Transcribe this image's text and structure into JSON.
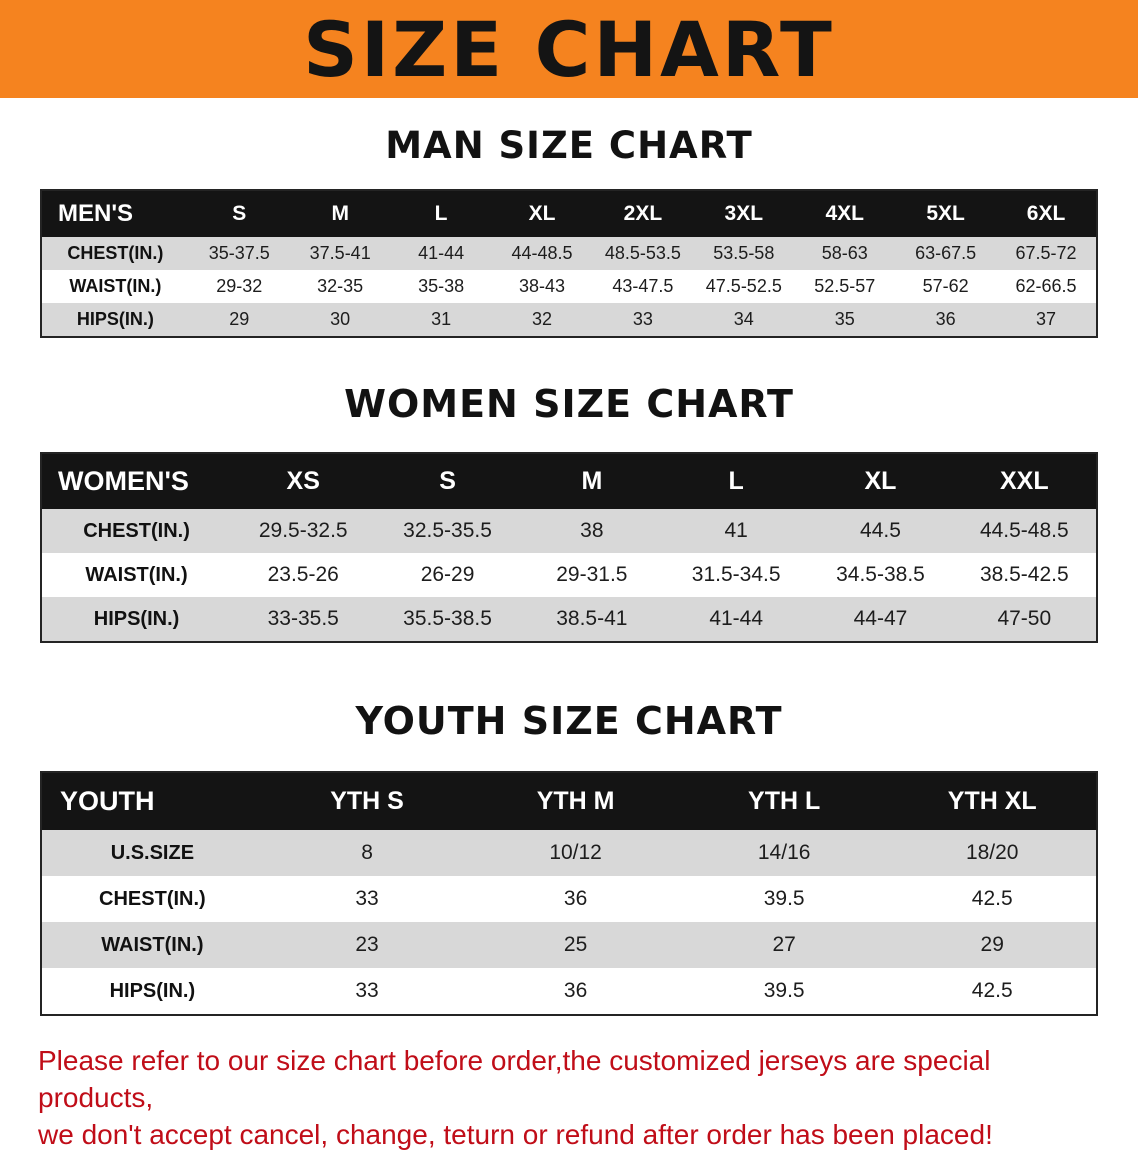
{
  "banner": {
    "title": "SIZE CHART",
    "bg_color": "#f5831f",
    "text_color": "#141414"
  },
  "sections": [
    {
      "id": "men",
      "heading": "MAN SIZE CHART",
      "table": {
        "header": [
          "MEN'S",
          "S",
          "M",
          "L",
          "XL",
          "2XL",
          "3XL",
          "4XL",
          "5XL",
          "6XL"
        ],
        "rows": [
          [
            "CHEST(IN.)",
            "35-37.5",
            "37.5-41",
            "41-44",
            "44-48.5",
            "48.5-53.5",
            "53.5-58",
            "58-63",
            "63-67.5",
            "67.5-72"
          ],
          [
            "WAIST(IN.)",
            "29-32",
            "32-35",
            "35-38",
            "38-43",
            "43-47.5",
            "47.5-52.5",
            "52.5-57",
            "57-62",
            "62-66.5"
          ],
          [
            "HIPS(IN.)",
            "29",
            "30",
            "31",
            "32",
            "33",
            "34",
            "35",
            "36",
            "37"
          ]
        ]
      }
    },
    {
      "id": "women",
      "heading": "WOMEN SIZE CHART",
      "table": {
        "header": [
          "WOMEN'S",
          "XS",
          "S",
          "M",
          "L",
          "XL",
          "XXL"
        ],
        "rows": [
          [
            "CHEST(IN.)",
            "29.5-32.5",
            "32.5-35.5",
            "38",
            "41",
            "44.5",
            "44.5-48.5"
          ],
          [
            "WAIST(IN.)",
            "23.5-26",
            "26-29",
            "29-31.5",
            "31.5-34.5",
            "34.5-38.5",
            "38.5-42.5"
          ],
          [
            "HIPS(IN.)",
            "33-35.5",
            "35.5-38.5",
            "38.5-41",
            "41-44",
            "44-47",
            "47-50"
          ]
        ]
      }
    },
    {
      "id": "youth",
      "heading": "YOUTH SIZE CHART",
      "table": {
        "header": [
          "YOUTH",
          "YTH S",
          "YTH M",
          "YTH L",
          "YTH XL"
        ],
        "rows": [
          [
            "U.S.SIZE",
            "8",
            "10/12",
            "14/16",
            "18/20"
          ],
          [
            "CHEST(IN.)",
            "33",
            "36",
            "39.5",
            "42.5"
          ],
          [
            "WAIST(IN.)",
            "23",
            "25",
            "27",
            "29"
          ],
          [
            "HIPS(IN.)",
            "33",
            "36",
            "39.5",
            "42.5"
          ]
        ]
      }
    }
  ],
  "footer": {
    "line1": "Please refer to our size chart before order,the customized jerseys are special products,",
    "line2": "we don't accept cancel, change, teturn or refund after order has been placed!",
    "text_color": "#c00d18"
  }
}
